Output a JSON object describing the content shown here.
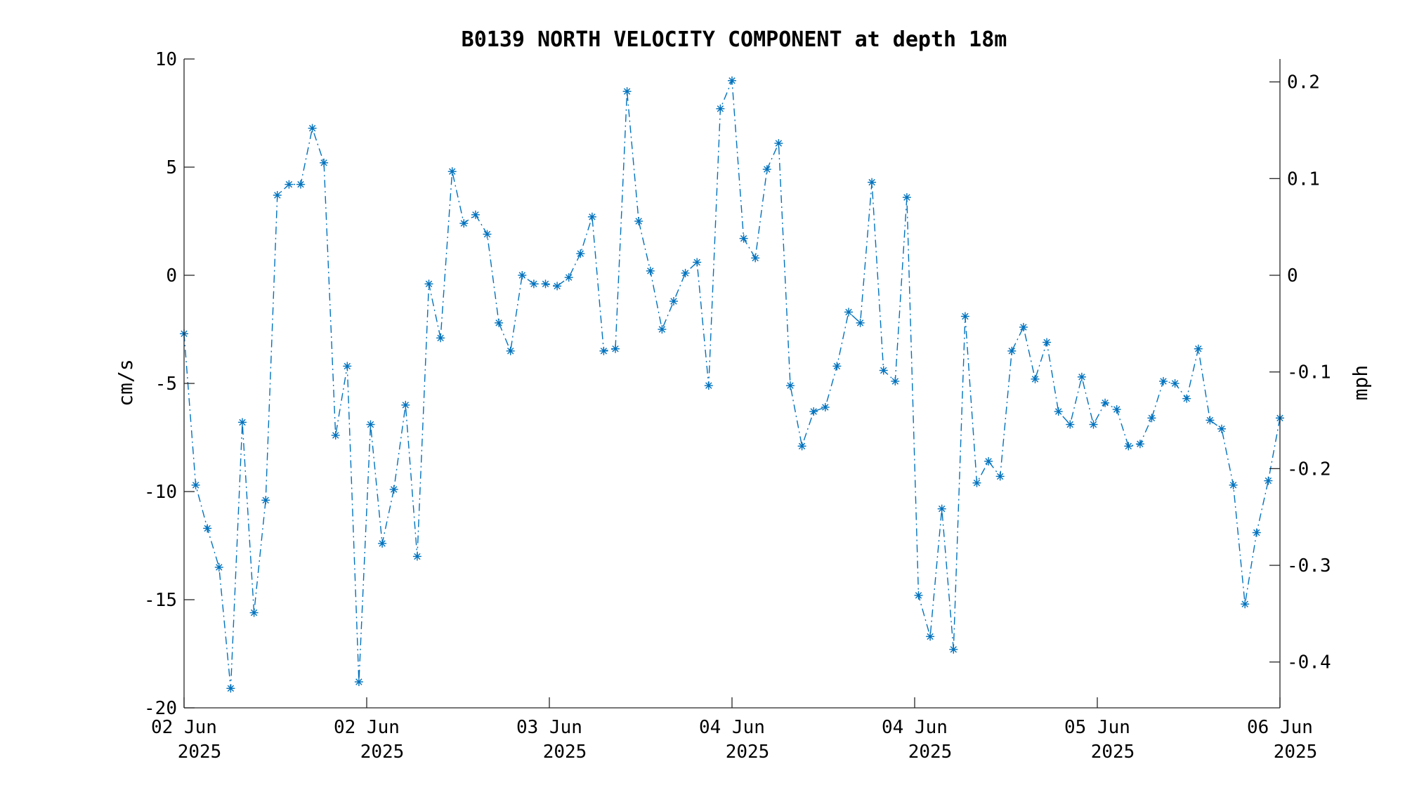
{
  "chart_data": {
    "type": "line",
    "title": "B0139 NORTH VELOCITY COMPONENT at depth 18m",
    "ylabel": "cm/s",
    "ylabel_right": "mph",
    "ylim": [
      -20,
      10
    ],
    "ylim_right": [
      -0.4474,
      0.2237
    ],
    "y_ticks": [
      "10",
      "5",
      "0",
      "-5",
      "-10",
      "-15",
      "-20"
    ],
    "y_ticks_right": [
      "0.2",
      "0.1",
      "0",
      "-0.1",
      "-0.2",
      "-0.3",
      "-0.4"
    ],
    "x_ticks": [
      {
        "day": "02 Jun",
        "year": "2025"
      },
      {
        "day": "02 Jun",
        "year": "2025"
      },
      {
        "day": "03 Jun",
        "year": "2025"
      },
      {
        "day": "04 Jun",
        "year": "2025"
      },
      {
        "day": "04 Jun",
        "year": "2025"
      },
      {
        "day": "05 Jun",
        "year": "2025"
      },
      {
        "day": "06 Jun",
        "year": "2025"
      }
    ],
    "grid": false,
    "series": [
      {
        "color": "#0072BD",
        "line_style": "dash-dot",
        "marker": "asterisk",
        "values": [
          -2.7,
          -9.7,
          -11.7,
          -13.5,
          -19.1,
          -6.8,
          -15.6,
          -10.4,
          3.7,
          4.2,
          4.2,
          6.8,
          5.2,
          -7.4,
          -4.2,
          -18.8,
          -6.9,
          -12.4,
          -9.9,
          -6.0,
          -13.0,
          -0.4,
          -2.9,
          4.8,
          2.4,
          2.8,
          1.9,
          -2.2,
          -3.5,
          0.0,
          -0.4,
          -0.4,
          -0.5,
          -0.1,
          1.0,
          2.7,
          -3.5,
          -3.4,
          8.5,
          2.5,
          0.2,
          -2.5,
          -1.2,
          0.1,
          0.6,
          -5.1,
          7.7,
          9.0,
          1.7,
          0.8,
          4.9,
          6.1,
          -5.1,
          -7.9,
          -6.3,
          -6.1,
          -4.2,
          -1.7,
          -2.2,
          4.3,
          -4.4,
          -4.9,
          3.6,
          -14.8,
          -16.7,
          -10.8,
          -17.3,
          -1.9,
          -9.6,
          -8.6,
          -9.3,
          -3.5,
          -2.4,
          -4.8,
          -3.1,
          -6.3,
          -6.9,
          -4.7,
          -6.9,
          -5.9,
          -6.2,
          -7.9,
          -7.8,
          -6.6,
          -4.9,
          -5.0,
          -5.7,
          -3.4,
          -6.7,
          -7.1,
          -9.7,
          -15.2,
          -11.9,
          -9.5,
          -6.6
        ]
      }
    ]
  }
}
